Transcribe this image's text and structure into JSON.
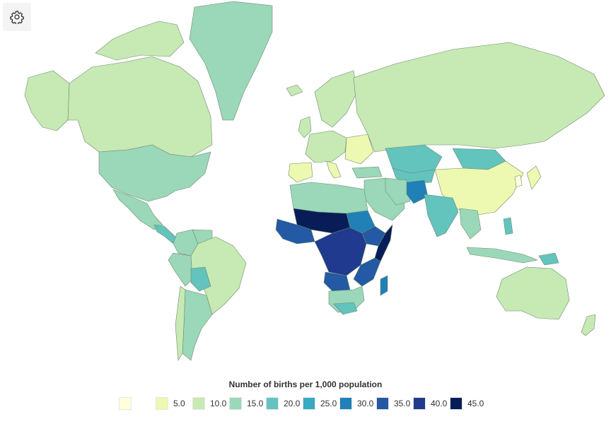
{
  "toolbar": {
    "settings_icon": "gear-icon"
  },
  "colors": {
    "ocean": "#ffffff",
    "border": "#6e8a6e",
    "scale": [
      "#ffffd9",
      "#edf8b1",
      "#c7e9b4",
      "#9bd7b9",
      "#63c3bd",
      "#36a9c3",
      "#2080b7",
      "#2359a5",
      "#1f3a8e",
      "#081d58"
    ]
  },
  "legend": {
    "title": "Number of births per 1,000 population",
    "items": [
      {
        "label": "",
        "color": "#ffffd9"
      },
      {
        "label": "5.0",
        "color": "#edf8b1"
      },
      {
        "label": "10.0",
        "color": "#c7e9b4"
      },
      {
        "label": "15.0",
        "color": "#9bd7b9"
      },
      {
        "label": "20.0",
        "color": "#63c3bd"
      },
      {
        "label": "25.0",
        "color": "#36a9c3"
      },
      {
        "label": "30.0",
        "color": "#2080b7"
      },
      {
        "label": "35.0",
        "color": "#2359a5"
      },
      {
        "label": "40.0",
        "color": "#1f3a8e"
      },
      {
        "label": "45.0",
        "color": "#081d58"
      }
    ]
  }
}
